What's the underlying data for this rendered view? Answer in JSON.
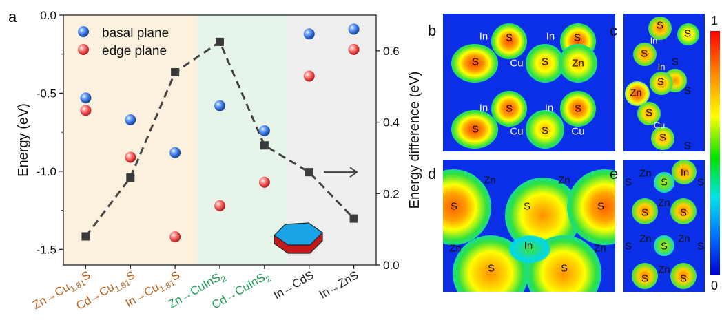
{
  "colors": {
    "basal": "#2a64c8",
    "edge": "#e03a3a",
    "zone_cu": "#fbf1de",
    "zone_cuins": "#e6f4ea",
    "zone_binary": "#eeeeee",
    "label_cu": "#b85c16",
    "label_cuins": "#1e9e55",
    "label_binary": "#222222",
    "line": "#444444"
  },
  "chart_data": {
    "type": "scatter",
    "panel_label": "a",
    "ylabel_left": "Energy (eV)",
    "ylabel_right": "Energy difference (eV)",
    "ylim_left": [
      -1.6,
      0.0
    ],
    "ylim_right": [
      0.0,
      0.7
    ],
    "yticks_left": [
      "0.0",
      "-0.5",
      "-1.0",
      "-1.5"
    ],
    "yticks_right": [
      "0.0",
      "0.2",
      "0.4",
      "0.6"
    ],
    "categories": [
      {
        "pre": "Zn→Cu",
        "sub": "1.81",
        "post": "S",
        "group": "cu"
      },
      {
        "pre": "Cd→Cu",
        "sub": "1.81",
        "post": "S",
        "group": "cu"
      },
      {
        "pre": "In→Cu",
        "sub": "1.81",
        "post": "S",
        "group": "cu"
      },
      {
        "pre": "Zn→CuInS",
        "sub": "2",
        "post": "",
        "group": "cuins"
      },
      {
        "pre": "Cd→CuInS",
        "sub": "2",
        "post": "",
        "group": "cuins"
      },
      {
        "pre": "In→CdS",
        "sub": "",
        "post": "",
        "group": "binary"
      },
      {
        "pre": "In→ZnS",
        "sub": "",
        "post": "",
        "group": "binary"
      }
    ],
    "series": [
      {
        "name": "basal plane",
        "axis": "left",
        "values": [
          -0.53,
          -0.67,
          -0.88,
          -0.58,
          -0.74,
          -0.12,
          -0.09
        ]
      },
      {
        "name": "edge plane",
        "axis": "left",
        "values": [
          -0.61,
          -0.91,
          -1.42,
          -1.22,
          -1.07,
          -0.39,
          -0.22
        ]
      },
      {
        "name": "",
        "axis": "right",
        "values": [
          0.08,
          0.245,
          0.54,
          0.625,
          0.335,
          0.26,
          0.13
        ]
      }
    ],
    "grid": false,
    "legend": "top-left"
  },
  "panels": {
    "b": {
      "letter": "b",
      "labels": [
        "In",
        "S",
        "In",
        "S",
        "S",
        "Cu",
        "S",
        "Zn",
        "In",
        "S",
        "In",
        "S",
        "S",
        "Cu",
        "S",
        "Cu"
      ]
    },
    "c": {
      "letter": "c",
      "labels": [
        "S",
        "S",
        "In",
        "S",
        "In",
        "S",
        "S",
        "Zn",
        "S",
        "S",
        "Cu",
        "S",
        "S"
      ]
    },
    "d": {
      "letter": "d",
      "labels": [
        "Zn",
        "Zn",
        "S",
        "S",
        "S",
        "Zn",
        "In",
        "Zn",
        "S",
        "S"
      ]
    },
    "e": {
      "letter": "e",
      "labels": [
        "Zn",
        "In",
        "S",
        "S",
        "S",
        "Zn",
        "S",
        "S",
        "Zn",
        "Zn",
        "S",
        "S",
        "S",
        "Zn",
        "S",
        "S"
      ]
    }
  },
  "colorbar": {
    "max": "1",
    "min": "0"
  }
}
